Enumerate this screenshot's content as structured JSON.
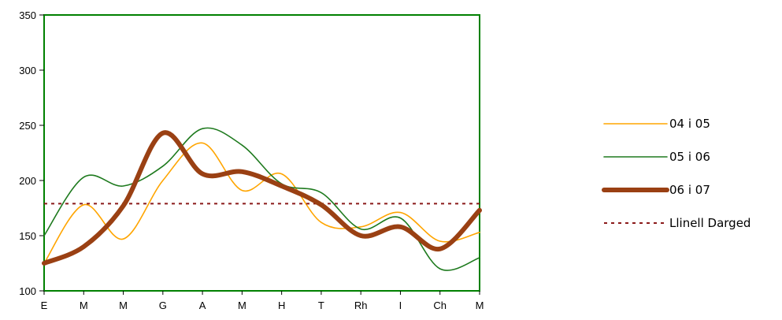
{
  "chart_data": {
    "type": "line",
    "categories": [
      "E",
      "M",
      "M",
      "G",
      "A",
      "M",
      "H",
      "T",
      "Rh",
      "I",
      "Ch",
      "M"
    ],
    "ylim": [
      100,
      350
    ],
    "yticks": [
      100,
      150,
      200,
      250,
      300,
      350
    ],
    "grid": false,
    "legend_position": "right",
    "plot_border_color": "#008000",
    "series": [
      {
        "name": "04 i 05",
        "color": "#FFA500",
        "style": "solid",
        "weight": "thin",
        "values": [
          125,
          178,
          147,
          200,
          234,
          191,
          206,
          162,
          158,
          171,
          145,
          153
        ]
      },
      {
        "name": "05 i 06",
        "color": "#1E7A1E",
        "style": "solid",
        "weight": "thin",
        "values": [
          150,
          203,
          195,
          213,
          247,
          232,
          197,
          189,
          156,
          166,
          120,
          130
        ]
      },
      {
        "name": "06 i 07",
        "color": "#9A4013",
        "style": "solid",
        "weight": "thick",
        "values": [
          125,
          140,
          177,
          243,
          206,
          208,
          195,
          178,
          150,
          158,
          138,
          173
        ]
      },
      {
        "name": "Llinell Darged",
        "color": "#8B1A1A",
        "style": "dashed",
        "weight": "thin",
        "values": [
          179,
          179,
          179,
          179,
          179,
          179,
          179,
          179,
          179,
          179,
          179,
          179
        ]
      }
    ]
  }
}
